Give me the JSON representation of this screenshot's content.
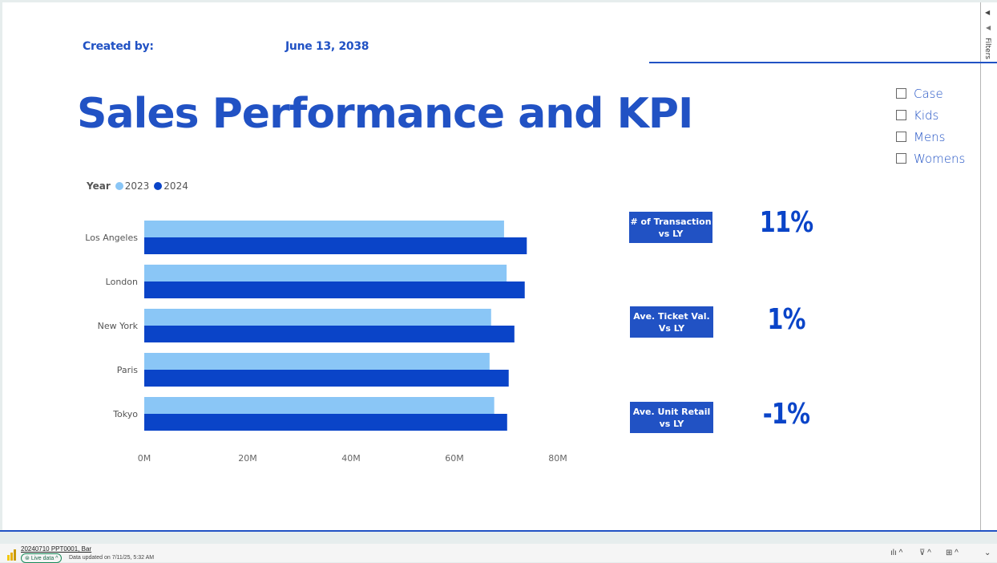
{
  "header": {
    "created_by_label": "Created by:",
    "date": "June 13, 2038",
    "title": "Sales Performance and KPI"
  },
  "filters_pane": {
    "label": "Filters",
    "collapse_icon": "chevron-left-icon"
  },
  "slicer": {
    "items": [
      {
        "label": "Case",
        "checked": false
      },
      {
        "label": "Kids",
        "checked": false
      },
      {
        "label": "Mens",
        "checked": false
      },
      {
        "label": "Womens",
        "checked": false
      }
    ]
  },
  "colors": {
    "accent": "#2152c4",
    "series_2023": "#8ac6f6",
    "series_2024": "#0a44c8"
  },
  "chart_data": {
    "type": "bar",
    "orientation": "horizontal",
    "title": "",
    "legend_title": "Year",
    "legend_position": "top-left",
    "categories": [
      "Los Angeles",
      "London",
      "New York",
      "Paris",
      "Tokyo"
    ],
    "series": [
      {
        "name": "2023",
        "color": "#8ac6f6",
        "values": [
          69.6,
          70.1,
          67.1,
          66.8,
          67.7
        ]
      },
      {
        "name": "2024",
        "color": "#0a44c8",
        "values": [
          74.0,
          73.6,
          71.6,
          70.5,
          70.2
        ]
      }
    ],
    "xlabel": "",
    "ylabel": "",
    "xlim": [
      0,
      80
    ],
    "xticks": [
      "0M",
      "20M",
      "40M",
      "60M",
      "80M"
    ],
    "xtick_values": [
      0,
      20,
      40,
      60,
      80
    ],
    "grid": false,
    "units": "M"
  },
  "kpis": [
    {
      "label": "# of Transaction\nvs LY",
      "value": "11%"
    },
    {
      "label": "Ave. Ticket  Val.\nVs LY",
      "value": "1%"
    },
    {
      "label": "Ave. Unit Retail\nvs LY",
      "value": "-1%"
    }
  ],
  "statusbar": {
    "file_name": "20240710 PPT0001, Bar",
    "live_label": "Live data",
    "updated_text": "Data updated on 7/11/25, 5:32 AM"
  }
}
